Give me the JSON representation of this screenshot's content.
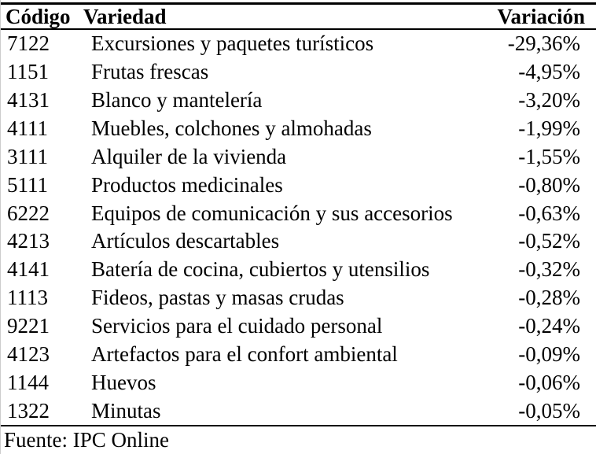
{
  "colors": {
    "text": "#000000",
    "background": "#ffffff",
    "border": "#000000",
    "edge_line": "#cccccc"
  },
  "table": {
    "columns": [
      {
        "key": "codigo",
        "label": "Código"
      },
      {
        "key": "variedad",
        "label": "Variedad"
      },
      {
        "key": "variacion",
        "label": "Variación"
      }
    ],
    "rows": [
      {
        "codigo": "7122",
        "variedad": "Excursiones y paquetes turísticos",
        "variacion": "-29,36%"
      },
      {
        "codigo": "1151",
        "variedad": "Frutas frescas",
        "variacion": "-4,95%"
      },
      {
        "codigo": "4131",
        "variedad": "Blanco y mantelería",
        "variacion": "-3,20%"
      },
      {
        "codigo": "4111",
        "variedad": "Muebles, colchones y almohadas",
        "variacion": "-1,99%"
      },
      {
        "codigo": "3111",
        "variedad": "Alquiler de la vivienda",
        "variacion": "-1,55%"
      },
      {
        "codigo": "5111",
        "variedad": "Productos medicinales",
        "variacion": "-0,80%"
      },
      {
        "codigo": "6222",
        "variedad": "Equipos de comunicación y sus accesorios",
        "variacion": "-0,63%"
      },
      {
        "codigo": "4213",
        "variedad": "Artículos descartables",
        "variacion": "-0,52%"
      },
      {
        "codigo": "4141",
        "variedad": "Batería de cocina, cubiertos y utensilios",
        "variacion": "-0,32%"
      },
      {
        "codigo": "1113",
        "variedad": "Fideos, pastas y masas crudas",
        "variacion": "-0,28%"
      },
      {
        "codigo": "9221",
        "variedad": "Servicios para el cuidado personal",
        "variacion": "-0,24%"
      },
      {
        "codigo": "4123",
        "variedad": "Artefactos para el confort ambiental",
        "variacion": "-0,09%"
      },
      {
        "codigo": "1144",
        "variedad": "Huevos",
        "variacion": "-0,06%"
      },
      {
        "codigo": "1322",
        "variedad": "Minutas",
        "variacion": "-0,05%"
      }
    ],
    "footer": "Fuente: IPC Online"
  },
  "chart_data": {
    "type": "table",
    "title": "",
    "columns": [
      "Código",
      "Variedad",
      "Variación"
    ],
    "categories": [
      "Excursiones y paquetes turísticos",
      "Frutas frescas",
      "Blanco y mantelería",
      "Muebles, colchones y almohadas",
      "Alquiler de la vivienda",
      "Productos medicinales",
      "Equipos de comunicación y sus accesorios",
      "Artículos descartables",
      "Batería de cocina, cubiertos y utensilios",
      "Fideos, pastas y masas crudas",
      "Servicios para el cuidado personal",
      "Artefactos para el confort ambiental",
      "Huevos",
      "Minutas"
    ],
    "values": [
      -29.36,
      -4.95,
      -3.2,
      -1.99,
      -1.55,
      -0.8,
      -0.63,
      -0.52,
      -0.32,
      -0.28,
      -0.24,
      -0.09,
      -0.06,
      -0.05
    ],
    "source": "Fuente: IPC Online"
  }
}
